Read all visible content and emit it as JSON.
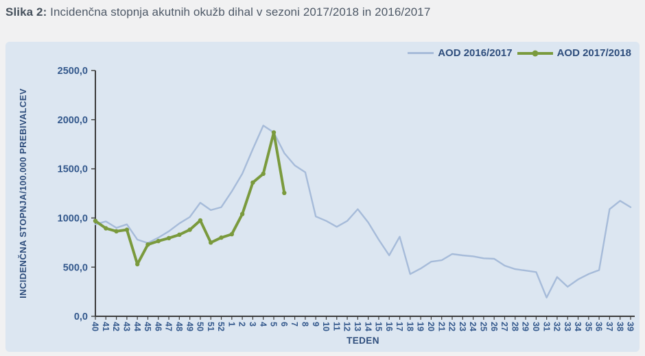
{
  "title": {
    "prefix": "Slika 2:",
    "text": " Incidenčna stopnja akutnih okužb dihal v sezoni 2017/2018 in 2016/2017"
  },
  "colors": {
    "panel_bg": "#dce6f1",
    "axis_line": "#3a3a3a",
    "axis_number_text": "#33588c",
    "axis_title_text": "#2e4d7c",
    "series_blue": "#a6bbd9",
    "series_green": "#7a9a3d"
  },
  "chart_data": {
    "type": "line",
    "title": "",
    "xlabel": "TEDEN",
    "ylabel": "INCIDENČNA STOPNJA/100.000 PREBIVALCEV",
    "ylim": [
      0,
      2500
    ],
    "ytick_step": 500,
    "ytick_labels": [
      "0,0",
      "500,0",
      "1000,0",
      "1500,0",
      "2000,0",
      "2500,0"
    ],
    "grid": false,
    "legend_position": "top-right",
    "categories": [
      "40",
      "41",
      "42",
      "43",
      "44",
      "45",
      "46",
      "47",
      "48",
      "49",
      "50",
      "51",
      "52",
      "1",
      "2",
      "3",
      "4",
      "5",
      "6",
      "7",
      "8",
      "9",
      "10",
      "11",
      "12",
      "13",
      "14",
      "15",
      "16",
      "17",
      "18",
      "19",
      "20",
      "21",
      "22",
      "23",
      "24",
      "25",
      "26",
      "27",
      "28",
      "29",
      "30",
      "31",
      "32",
      "33",
      "34",
      "35",
      "36",
      "37",
      "38",
      "39"
    ],
    "series": [
      {
        "name": "AOD 2016/2017",
        "color": "#a6bbd9",
        "marker": false,
        "line_width": 2.4,
        "values": [
          935,
          965,
          900,
          935,
          780,
          745,
          800,
          865,
          945,
          1010,
          1155,
          1080,
          1110,
          1270,
          1450,
          1700,
          1940,
          1870,
          1660,
          1535,
          1465,
          1015,
          970,
          910,
          970,
          1090,
          955,
          780,
          620,
          810,
          430,
          486,
          556,
          570,
          634,
          620,
          610,
          590,
          585,
          515,
          480,
          465,
          450,
          190,
          400,
          300,
          375,
          430,
          470,
          1090,
          1175,
          1110
        ]
      },
      {
        "name": "AOD 2017/2018",
        "color": "#7a9a3d",
        "marker": true,
        "line_width": 4,
        "values": [
          970,
          895,
          865,
          880,
          530,
          730,
          765,
          795,
          830,
          880,
          975,
          750,
          800,
          835,
          1040,
          1360,
          1450,
          1870,
          1255,
          null,
          null,
          null,
          null,
          null,
          null,
          null,
          null,
          null,
          null,
          null,
          null,
          null,
          null,
          null,
          null,
          null,
          null,
          null,
          null,
          null,
          null,
          null,
          null,
          null,
          null,
          null,
          null,
          null,
          null,
          null,
          null,
          null
        ]
      }
    ]
  }
}
